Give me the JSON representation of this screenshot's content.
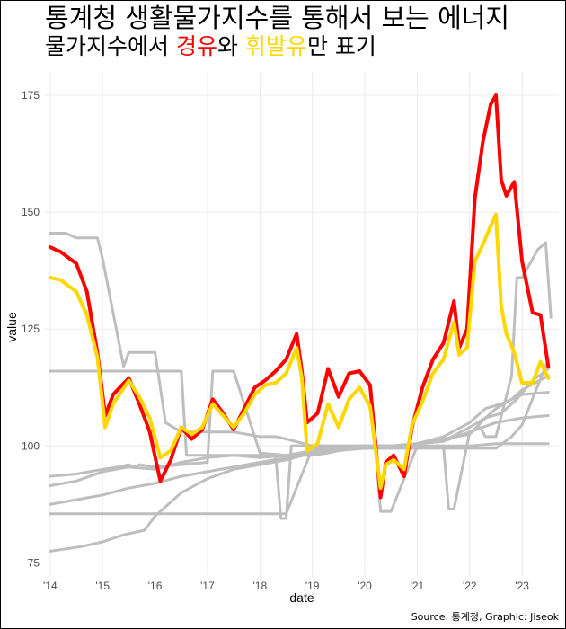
{
  "title": "통계청 생활물가지수를 통해서 보는 에너지",
  "subtitle": {
    "part1": "물가지수에서 ",
    "diesel": "경유",
    "part2": "와 ",
    "gasoline": "휘발유",
    "part3": "만 표기"
  },
  "caption": "Source: 통계청, Graphic: Jiseok",
  "colors": {
    "diesel": "#ff0000",
    "gasoline": "#ffd700",
    "other": "#bebebe",
    "grid": "#ebebeb"
  },
  "chart_data": {
    "type": "line",
    "xlabel": "date",
    "ylabel": "value",
    "xlim": [
      2013.9,
      2023.7
    ],
    "ylim": [
      72,
      180
    ],
    "x_ticks": [
      {
        "value": 2014,
        "label": "'14"
      },
      {
        "value": 2015,
        "label": "'15"
      },
      {
        "value": 2016,
        "label": "'16"
      },
      {
        "value": 2017,
        "label": "'17"
      },
      {
        "value": 2018,
        "label": "'18"
      },
      {
        "value": 2019,
        "label": "'19"
      },
      {
        "value": 2020,
        "label": "'20"
      },
      {
        "value": 2021,
        "label": "'21"
      },
      {
        "value": 2022,
        "label": "'22"
      },
      {
        "value": 2023,
        "label": "'23"
      }
    ],
    "y_ticks": [
      75,
      100,
      125,
      150,
      175
    ],
    "grid": true,
    "highlight_series": [
      {
        "key": "diesel",
        "x": [
          2014.0,
          2014.2,
          2014.5,
          2014.7,
          2014.9,
          2015.05,
          2015.2,
          2015.5,
          2015.7,
          2015.9,
          2016.1,
          2016.3,
          2016.5,
          2016.7,
          2016.9,
          2017.1,
          2017.3,
          2017.5,
          2017.7,
          2017.9,
          2018.1,
          2018.3,
          2018.5,
          2018.7,
          2018.8,
          2018.9,
          2019.1,
          2019.3,
          2019.5,
          2019.7,
          2019.9,
          2020.1,
          2020.3,
          2020.4,
          2020.55,
          2020.75,
          2020.9,
          2021.1,
          2021.3,
          2021.5,
          2021.7,
          2021.8,
          2021.95,
          2022.1,
          2022.25,
          2022.4,
          2022.5,
          2022.6,
          2022.7,
          2022.85,
          2023.0,
          2023.2,
          2023.35,
          2023.5
        ],
        "y": [
          142.5,
          141.5,
          139.0,
          133.0,
          120.0,
          106.5,
          111.0,
          114.5,
          109.0,
          103.0,
          92.5,
          97.0,
          104.0,
          101.5,
          103.5,
          110.0,
          107.0,
          103.5,
          108.0,
          112.5,
          114.0,
          116.0,
          118.5,
          124.0,
          116.0,
          105.0,
          107.0,
          116.5,
          110.5,
          115.5,
          116.0,
          113.0,
          89.0,
          96.5,
          98.0,
          93.5,
          104.0,
          112.5,
          118.5,
          122.0,
          131.0,
          121.0,
          125.0,
          153.0,
          165.0,
          173.0,
          175.0,
          157.0,
          153.5,
          156.5,
          139.5,
          128.5,
          128.0,
          117.0
        ]
      },
      {
        "key": "gasoline",
        "x": [
          2014.0,
          2014.2,
          2014.5,
          2014.7,
          2014.9,
          2015.05,
          2015.2,
          2015.5,
          2015.7,
          2015.9,
          2016.1,
          2016.3,
          2016.5,
          2016.7,
          2016.9,
          2017.1,
          2017.3,
          2017.5,
          2017.7,
          2017.9,
          2018.1,
          2018.3,
          2018.5,
          2018.7,
          2018.8,
          2018.9,
          2019.1,
          2019.3,
          2019.5,
          2019.7,
          2019.9,
          2020.1,
          2020.3,
          2020.4,
          2020.55,
          2020.75,
          2020.9,
          2021.1,
          2021.3,
          2021.5,
          2021.7,
          2021.8,
          2021.95,
          2022.1,
          2022.25,
          2022.4,
          2022.5,
          2022.6,
          2022.7,
          2022.85,
          2023.0,
          2023.2,
          2023.35,
          2023.5
        ],
        "y": [
          136.0,
          135.5,
          133.0,
          128.0,
          119.0,
          104.0,
          109.0,
          114.0,
          110.5,
          106.0,
          97.5,
          99.0,
          104.0,
          102.5,
          104.0,
          109.0,
          106.5,
          104.0,
          107.0,
          111.0,
          113.0,
          113.5,
          115.5,
          121.0,
          114.5,
          99.0,
          100.5,
          109.0,
          104.0,
          110.0,
          112.5,
          108.5,
          91.0,
          96.0,
          97.0,
          95.0,
          104.5,
          109.5,
          115.5,
          118.5,
          126.5,
          119.5,
          121.0,
          139.5,
          143.0,
          147.0,
          149.5,
          130.0,
          124.0,
          120.0,
          113.5,
          113.5,
          118.0,
          114.5
        ]
      }
    ],
    "other_series": [
      {
        "x": [
          2014.0,
          2014.3,
          2014.5,
          2014.9,
          2015.0,
          2015.4,
          2015.5,
          2016.0,
          2016.2,
          2016.5,
          2017.0,
          2017.5,
          2018.0,
          2018.3,
          2018.5,
          2019.0,
          2019.5,
          2020.0,
          2020.5,
          2021.0,
          2021.5,
          2022.0,
          2022.5,
          2023.0,
          2023.5
        ],
        "y": [
          145.5,
          145.5,
          144.5,
          144.5,
          140.0,
          117.0,
          120.0,
          120.0,
          105.0,
          103.0,
          103.0,
          103.0,
          102.0,
          102.0,
          101.5,
          100.0,
          100.0,
          100.0,
          100.0,
          100.0,
          100.0,
          100.0,
          100.5,
          100.5,
          100.5
        ]
      },
      {
        "x": [
          2014.0,
          2015.0,
          2015.5,
          2015.8,
          2015.9,
          2016.5,
          2016.6,
          2017.0,
          2017.5,
          2018.0,
          2018.3,
          2018.4,
          2018.5,
          2018.6,
          2019.0,
          2020.0,
          2020.2,
          2020.3,
          2020.5,
          2021.0,
          2021.5,
          2021.6,
          2021.7,
          2022.0,
          2022.2,
          2022.3,
          2022.5,
          2022.8,
          2022.9,
          2023.0,
          2023.3,
          2023.45,
          2023.55
        ],
        "y": [
          116.0,
          116.0,
          116.0,
          116.0,
          116.0,
          116.0,
          98.0,
          98.0,
          98.0,
          98.0,
          98.0,
          84.5,
          84.5,
          100.0,
          100.0,
          100.0,
          100.0,
          86.0,
          86.0,
          100.0,
          100.0,
          86.5,
          86.5,
          103.0,
          104.0,
          102.0,
          102.0,
          115.0,
          136.0,
          136.0,
          142.0,
          143.5,
          127.5
        ]
      },
      {
        "x": [
          2014.0,
          2014.5,
          2015.0,
          2015.3,
          2015.5,
          2015.6,
          2015.7,
          2016.0,
          2016.5,
          2017.0,
          2017.1,
          2017.2,
          2017.5,
          2018.0,
          2018.5,
          2019.0,
          2019.3,
          2019.5,
          2019.8,
          2020.0,
          2020.5,
          2021.0,
          2021.5,
          2022.0,
          2022.5,
          2023.0,
          2023.5
        ],
        "y": [
          93.5,
          94.0,
          95.0,
          95.5,
          96.0,
          95.5,
          96.0,
          95.5,
          96.0,
          96.5,
          116.0,
          116.0,
          116.0,
          98.5,
          98.0,
          98.0,
          98.5,
          99.0,
          100.0,
          100.0,
          100.0,
          100.5,
          101.0,
          103.0,
          105.0,
          106.0,
          106.5
        ]
      },
      {
        "x": [
          2014.0,
          2014.5,
          2015.0,
          2015.5,
          2016.0,
          2016.5,
          2017.0,
          2017.5,
          2018.0,
          2018.5,
          2019.0,
          2019.5,
          2020.0,
          2020.5,
          2021.0,
          2021.5,
          2022.0,
          2022.3,
          2022.5,
          2022.8,
          2023.0,
          2023.5
        ],
        "y": [
          91.5,
          92.5,
          94.5,
          95.5,
          95.0,
          96.5,
          97.5,
          98.0,
          97.5,
          98.0,
          99.0,
          99.5,
          100.0,
          100.0,
          100.5,
          101.0,
          104.0,
          106.0,
          108.0,
          110.0,
          111.0,
          111.5
        ]
      },
      {
        "x": [
          2014.0,
          2014.5,
          2015.0,
          2015.5,
          2016.0,
          2016.5,
          2017.0,
          2017.5,
          2018.0,
          2018.5,
          2019.0,
          2019.5,
          2020.0,
          2020.5,
          2021.0,
          2021.5,
          2022.0,
          2022.3,
          2022.6,
          2022.8,
          2023.0,
          2023.5
        ],
        "y": [
          87.5,
          88.5,
          89.5,
          91.0,
          92.0,
          93.5,
          94.5,
          95.5,
          96.5,
          97.5,
          98.5,
          99.0,
          100.0,
          100.0,
          100.5,
          102.0,
          105.0,
          108.0,
          109.0,
          110.0,
          112.0,
          115.0
        ]
      },
      {
        "x": [
          2014.0,
          2014.3,
          2014.6,
          2015.0,
          2015.4,
          2015.6,
          2015.8,
          2016.0,
          2016.5,
          2017.0,
          2017.5,
          2018.0,
          2018.5,
          2019.0,
          2019.5,
          2020.0,
          2020.5,
          2021.0,
          2021.5,
          2022.0,
          2022.3,
          2022.6,
          2022.9,
          2023.2,
          2023.5
        ],
        "y": [
          77.5,
          78.0,
          78.5,
          79.5,
          81.0,
          81.5,
          82.0,
          85.0,
          90.0,
          93.0,
          95.0,
          96.0,
          97.0,
          98.5,
          99.0,
          99.5,
          99.5,
          100.5,
          101.5,
          102.5,
          106.0,
          107.0,
          110.0,
          114.0,
          116.5
        ]
      },
      {
        "x": [
          2014.0,
          2015.0,
          2015.5,
          2016.0,
          2016.5,
          2017.0,
          2017.5,
          2018.0,
          2018.5,
          2019.0,
          2019.5,
          2020.0,
          2020.5,
          2021.0,
          2021.5,
          2022.0,
          2022.5,
          2022.8,
          2023.0,
          2023.5
        ],
        "y": [
          85.5,
          85.5,
          85.5,
          85.5,
          85.5,
          85.5,
          85.5,
          85.5,
          85.5,
          99.5,
          99.5,
          99.5,
          99.5,
          99.5,
          99.5,
          99.5,
          99.5,
          102.0,
          104.5,
          118.5
        ]
      }
    ]
  }
}
